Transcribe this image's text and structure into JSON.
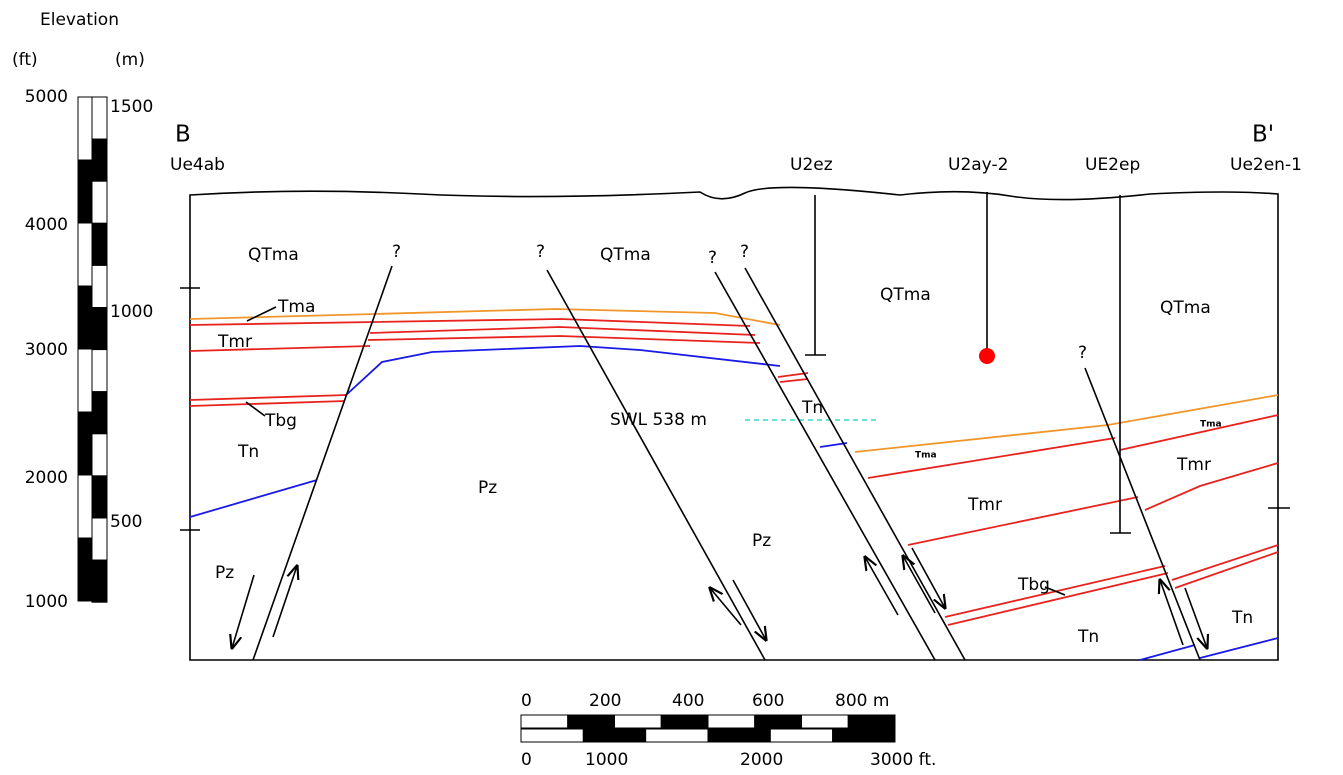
{
  "elevation_scale": {
    "title": "Elevation",
    "ft_label": "(ft)",
    "m_label": "(m)",
    "ft_ticks": [
      "5000",
      "4000",
      "3000",
      "2000",
      "1000"
    ],
    "m_ticks": [
      "1500",
      "1000",
      "500"
    ]
  },
  "section": {
    "start": "B",
    "end": "B'",
    "swl": "SWL 538 m"
  },
  "wells": [
    "Ue4ab",
    "U2ez",
    "U2ay-2",
    "UE2ep",
    "Ue2en-1"
  ],
  "units": [
    "QTma",
    "QTma",
    "QTma",
    "QTma",
    "Tma",
    "Tmr",
    "Tbg",
    "Tn",
    "Pz",
    "Pz",
    "Pz",
    "Tn",
    "Tma",
    "Tma",
    "Tmr",
    "Tmr",
    "Tbg",
    "Tn",
    "Tn"
  ],
  "question_marks": [
    "?",
    "?",
    "?",
    "?",
    "?"
  ],
  "scale_bar": {
    "m_ticks": [
      "0",
      "200",
      "400",
      "600",
      "800 m"
    ],
    "ft_ticks": [
      "0",
      "1000",
      "2000",
      "3000 ft."
    ]
  }
}
